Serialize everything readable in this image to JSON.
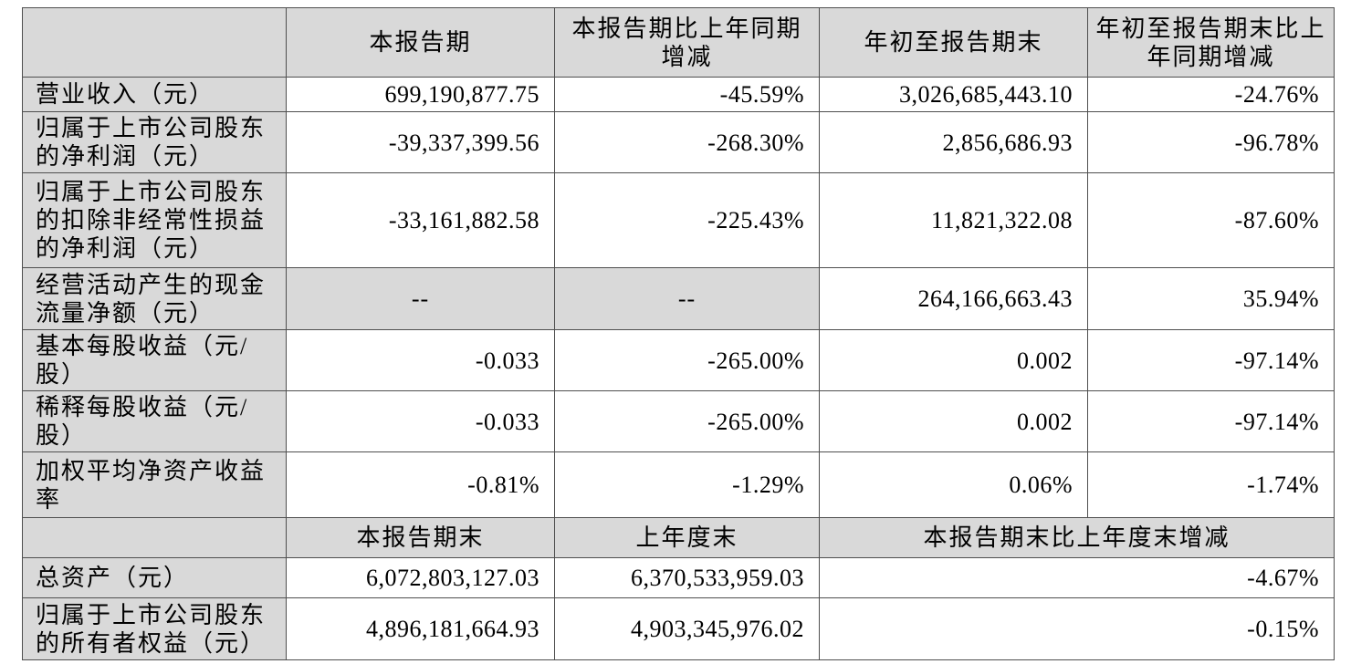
{
  "page": {
    "background": "#ffffff"
  },
  "table": {
    "shade_color": "#d9d9d9",
    "border_color": "#4f4f4f",
    "section_1": {
      "column_headers": [
        "",
        "本报告期",
        "本报告期比上年同期增减",
        "年初至报告期末",
        "年初至报告期末比上年同期增减"
      ]
    },
    "section_2": {
      "column_headers": [
        "",
        "本报告期末",
        "上年度末",
        "本报告期末比上年度末增减"
      ]
    },
    "rows": [
      {
        "kind": "header",
        "cells": [
          {
            "t": ""
          },
          {
            "t": "本报告期"
          },
          {
            "t": "本报告期比上年同期增减"
          },
          {
            "t": "年初至报告期末"
          },
          {
            "t": "年初至报告期末比上年同期增减"
          }
        ]
      },
      {
        "kind": "data",
        "cells": [
          {
            "t": "营业收入（元）",
            "r": "label"
          },
          {
            "t": "699,190,877.75",
            "r": "num"
          },
          {
            "t": "-45.59%",
            "r": "num"
          },
          {
            "t": "3,026,685,443.10",
            "r": "num"
          },
          {
            "t": "-24.76%",
            "r": "num"
          }
        ]
      },
      {
        "kind": "data",
        "cells": [
          {
            "t": "归属于上市公司股东的净利润（元）",
            "r": "label"
          },
          {
            "t": "-39,337,399.56",
            "r": "num"
          },
          {
            "t": "-268.30%",
            "r": "num"
          },
          {
            "t": "2,856,686.93",
            "r": "num"
          },
          {
            "t": "-96.78%",
            "r": "num"
          }
        ]
      },
      {
        "kind": "data",
        "cells": [
          {
            "t": "归属于上市公司股东的扣除非经常性损益的净利润（元）",
            "r": "label"
          },
          {
            "t": "-33,161,882.58",
            "r": "num"
          },
          {
            "t": "-225.43%",
            "r": "num"
          },
          {
            "t": "11,821,322.08",
            "r": "num"
          },
          {
            "t": "-87.60%",
            "r": "num"
          }
        ]
      },
      {
        "kind": "data",
        "cells": [
          {
            "t": "经营活动产生的现金流量净额（元）",
            "r": "label"
          },
          {
            "t": "--",
            "r": "dash"
          },
          {
            "t": "--",
            "r": "dash"
          },
          {
            "t": "264,166,663.43",
            "r": "num"
          },
          {
            "t": "35.94%",
            "r": "num"
          }
        ]
      },
      {
        "kind": "data",
        "cells": [
          {
            "t": "基本每股收益（元/股）",
            "r": "label"
          },
          {
            "t": "-0.033",
            "r": "num"
          },
          {
            "t": "-265.00%",
            "r": "num"
          },
          {
            "t": "0.002",
            "r": "num"
          },
          {
            "t": "-97.14%",
            "r": "num"
          }
        ]
      },
      {
        "kind": "data",
        "cells": [
          {
            "t": "稀释每股收益（元/股）",
            "r": "label"
          },
          {
            "t": "-0.033",
            "r": "num"
          },
          {
            "t": "-265.00%",
            "r": "num"
          },
          {
            "t": "0.002",
            "r": "num"
          },
          {
            "t": "-97.14%",
            "r": "num"
          }
        ]
      },
      {
        "kind": "data",
        "cells": [
          {
            "t": "加权平均净资产收益率",
            "r": "label"
          },
          {
            "t": "-0.81%",
            "r": "num"
          },
          {
            "t": "-1.29%",
            "r": "num"
          },
          {
            "t": "0.06%",
            "r": "num"
          },
          {
            "t": "-1.74%",
            "r": "num"
          }
        ]
      },
      {
        "kind": "header",
        "cells": [
          {
            "t": ""
          },
          {
            "t": "本报告期末"
          },
          {
            "t": "上年度末"
          },
          {
            "t": "本报告期末比上年度末增减",
            "span": 2
          }
        ]
      },
      {
        "kind": "data",
        "cells": [
          {
            "t": "总资产（元）",
            "r": "label"
          },
          {
            "t": "6,072,803,127.03",
            "r": "num"
          },
          {
            "t": "6,370,533,959.03",
            "r": "num"
          },
          {
            "t": "-4.67%",
            "r": "num",
            "span": 2
          }
        ]
      },
      {
        "kind": "data",
        "cells": [
          {
            "t": "归属于上市公司股东的所有者权益（元）",
            "r": "label"
          },
          {
            "t": "4,896,181,664.93",
            "r": "num"
          },
          {
            "t": "4,903,345,976.02",
            "r": "num"
          },
          {
            "t": "-0.15%",
            "r": "num",
            "span": 2
          }
        ]
      }
    ]
  }
}
